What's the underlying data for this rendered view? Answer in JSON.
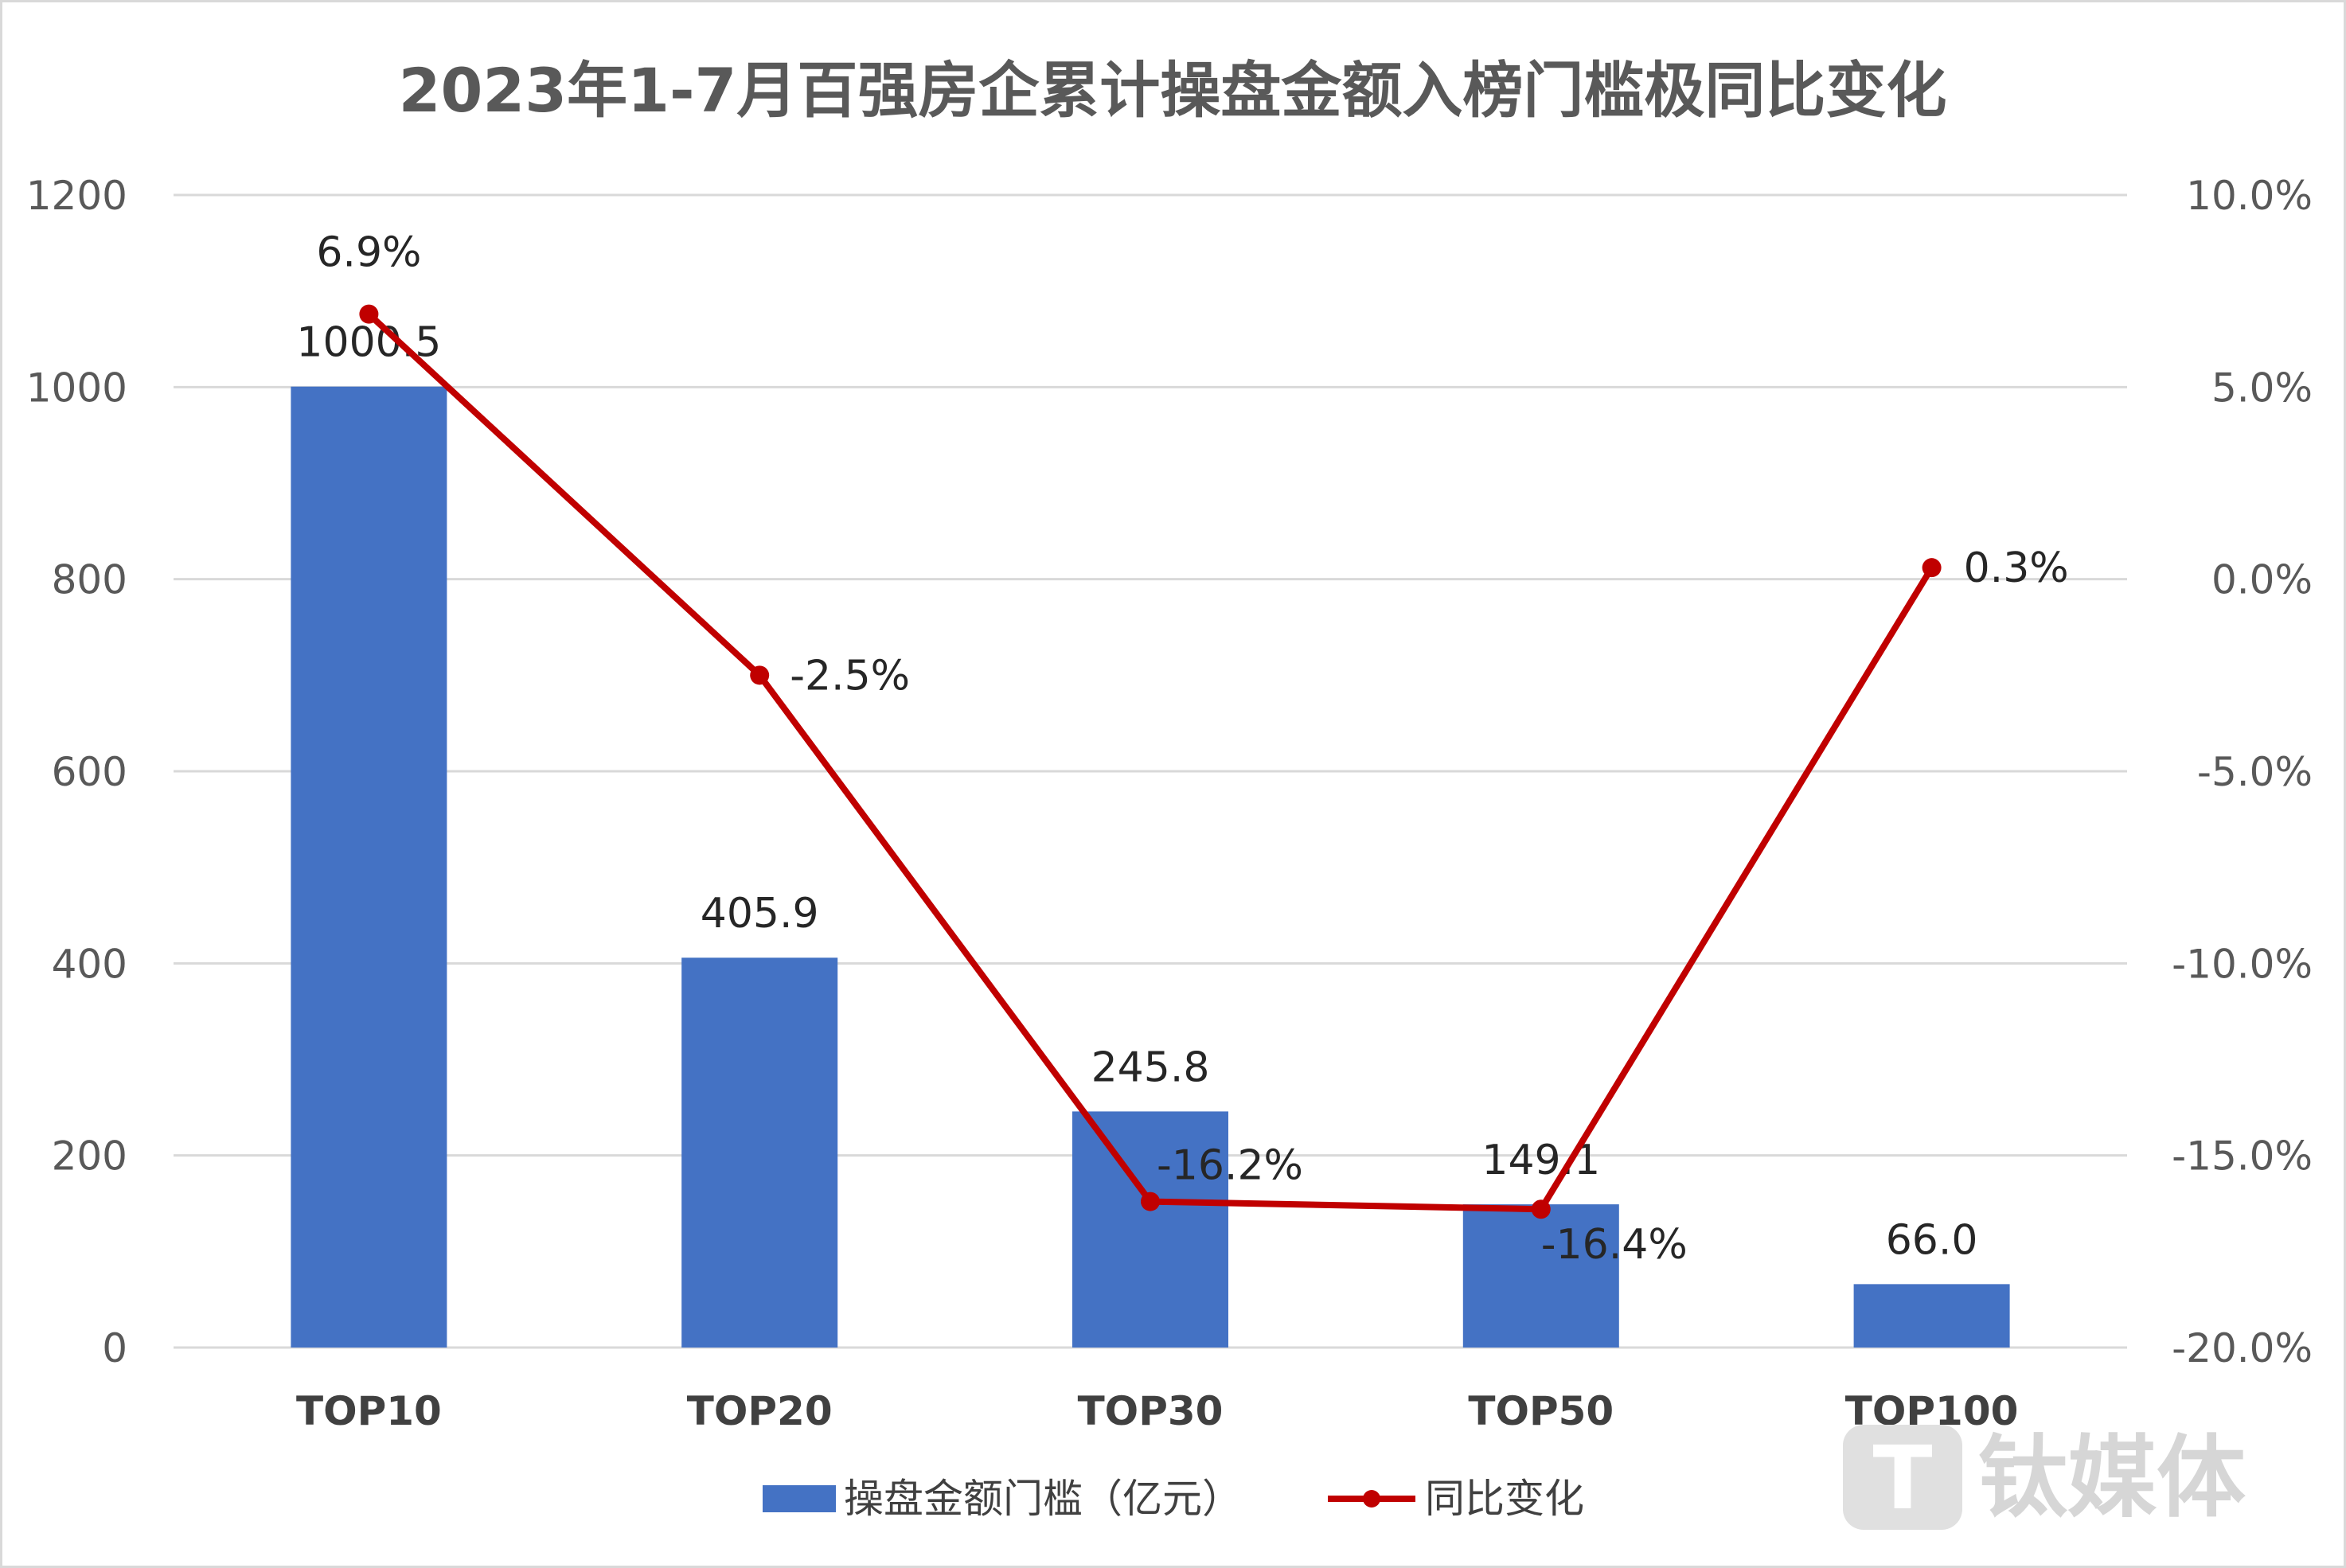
{
  "chart_data": {
    "type": "bar",
    "title": "2023年1-7月百强房企累计操盘金额入榜门槛极同比变化",
    "categories": [
      "TOP10",
      "TOP20",
      "TOP30",
      "TOP50",
      "TOP100"
    ],
    "series": [
      {
        "name": "操盘金额门槛（亿元）",
        "type": "bar",
        "axis": "left",
        "values": [
          1000.5,
          405.9,
          245.8,
          149.1,
          66.0
        ],
        "labels": [
          "1000.5",
          "405.9",
          "245.8",
          "149.1",
          "66.0"
        ],
        "color": "#4472c4"
      },
      {
        "name": "同比变化",
        "type": "line",
        "axis": "right",
        "values": [
          6.9,
          -2.5,
          -16.2,
          -16.4,
          0.3
        ],
        "labels": [
          "6.9%",
          "-2.5%",
          "-16.2%",
          "-16.4%",
          "0.3%"
        ],
        "color": "#c00000"
      }
    ],
    "y_left": {
      "min": 0,
      "max": 1200,
      "ticks": [
        "0",
        "200",
        "400",
        "600",
        "800",
        "1000",
        "1200"
      ]
    },
    "y_right": {
      "min": -20,
      "max": 10,
      "ticks": [
        "-20.0%",
        "-15.0%",
        "-10.0%",
        "-5.0%",
        "0.0%",
        "5.0%",
        "10.0%"
      ]
    },
    "grid": true,
    "legend_position": "bottom"
  },
  "watermark": {
    "text": "钛媒体",
    "logo_letter": "T"
  }
}
